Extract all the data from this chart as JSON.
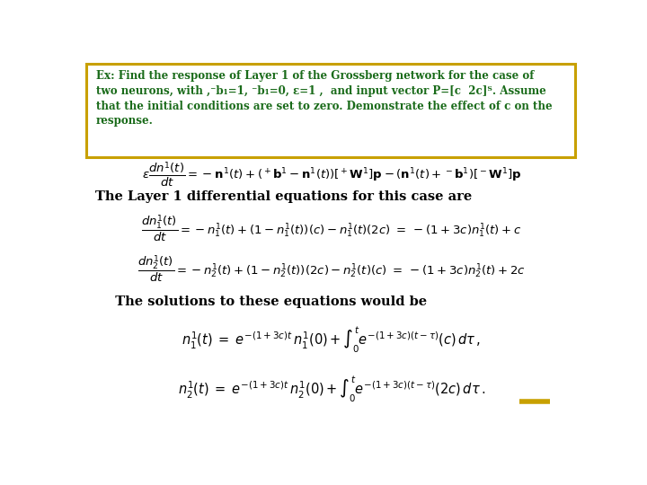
{
  "bg_color": "#ffffff",
  "border_color": "#c8a000",
  "text_color_green": "#1a6b1a",
  "text_color_black": "#000000",
  "title_line1": "Ex: Find the response of Layer 1 of the Grossberg network for the case of",
  "title_line2": "two neurons, with ,⁻b₁=1, ⁻b₁=0, ε=1 ,  and input vector P=[c  2c]ᵀ. Assume",
  "title_line3": "that the initial conditions are set to zero. Demonstrate the effect of c on the",
  "title_line4": "response.",
  "section1": "The Layer 1 differential equations for this case are",
  "section2": "  The solutions to these equations would be",
  "dash_color": "#c8a000",
  "figsize": [
    7.2,
    5.4
  ],
  "dpi": 100
}
